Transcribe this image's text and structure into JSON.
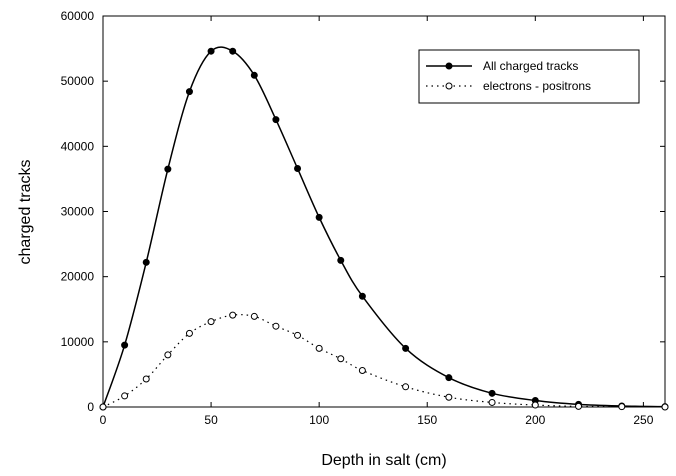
{
  "chart_data": {
    "type": "line",
    "title": "",
    "xlabel": "Depth in salt (cm)",
    "ylabel": "charged tracks",
    "xlim": [
      0,
      260
    ],
    "ylim": [
      0,
      60000
    ],
    "xticks": [
      0,
      50,
      100,
      150,
      200,
      250
    ],
    "yticks": [
      0,
      10000,
      20000,
      30000,
      40000,
      50000,
      60000
    ],
    "grid": false,
    "legend_position": "top-right",
    "series": [
      {
        "name": "All charged tracks",
        "marker": "filled-circle",
        "line": "solid",
        "x": [
          0,
          10,
          20,
          30,
          40,
          50,
          60,
          70,
          80,
          90,
          100,
          110,
          120,
          140,
          160,
          180,
          200,
          220,
          240,
          260
        ],
        "y": [
          0,
          9500,
          22200,
          36500,
          48400,
          54600,
          54600,
          50900,
          44100,
          36600,
          29100,
          22500,
          17000,
          9000,
          4500,
          2100,
          1000,
          400,
          150,
          50
        ]
      },
      {
        "name": "electrons - positrons",
        "marker": "open-circle",
        "line": "dotted",
        "x": [
          0,
          10,
          20,
          30,
          40,
          50,
          60,
          70,
          80,
          90,
          100,
          110,
          120,
          140,
          160,
          180,
          200,
          220,
          240,
          260
        ],
        "y": [
          0,
          1700,
          4300,
          8000,
          11300,
          13100,
          14100,
          13900,
          12400,
          11000,
          9000,
          7400,
          5600,
          3100,
          1500,
          700,
          300,
          100,
          50,
          0
        ]
      }
    ]
  }
}
